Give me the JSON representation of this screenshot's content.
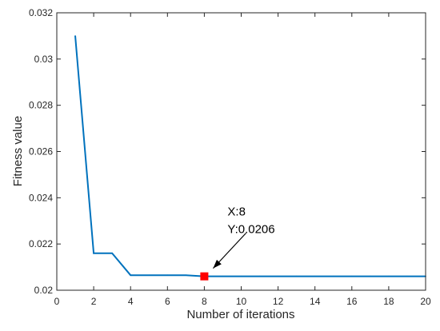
{
  "chart_data": {
    "type": "line",
    "title": "",
    "xlabel": "Number of iterations",
    "ylabel": "Fitness value",
    "xlim": [
      0,
      20
    ],
    "ylim": [
      0.02,
      0.032
    ],
    "xticks": [
      0,
      2,
      4,
      6,
      8,
      10,
      12,
      14,
      16,
      18,
      20
    ],
    "yticks": [
      0.02,
      0.022,
      0.024,
      0.026,
      0.028,
      0.03,
      0.032
    ],
    "xtick_labels": [
      "0",
      "2",
      "4",
      "6",
      "8",
      "10",
      "12",
      "14",
      "16",
      "18",
      "20"
    ],
    "ytick_labels": [
      "0.02",
      "0.022",
      "0.024",
      "0.026",
      "0.028",
      "0.03",
      "0.032"
    ],
    "grid": false,
    "series": [
      {
        "color": "#0072BD",
        "x": [
          1,
          2,
          3,
          4,
          5,
          6,
          7,
          8,
          9,
          10,
          11,
          12,
          13,
          14,
          15,
          16,
          17,
          18,
          19,
          20
        ],
        "y": [
          0.031,
          0.0216,
          0.0216,
          0.02065,
          0.02065,
          0.02065,
          0.02065,
          0.0206,
          0.0206,
          0.0206,
          0.0206,
          0.0206,
          0.0206,
          0.0206,
          0.0206,
          0.0206,
          0.0206,
          0.0206,
          0.0206,
          0.0206
        ]
      }
    ],
    "annotation": {
      "x": 8,
      "y": 0.0206,
      "label_x": "X:8",
      "label_y": "Y:0.0206",
      "marker_color": "#FF0000"
    }
  }
}
